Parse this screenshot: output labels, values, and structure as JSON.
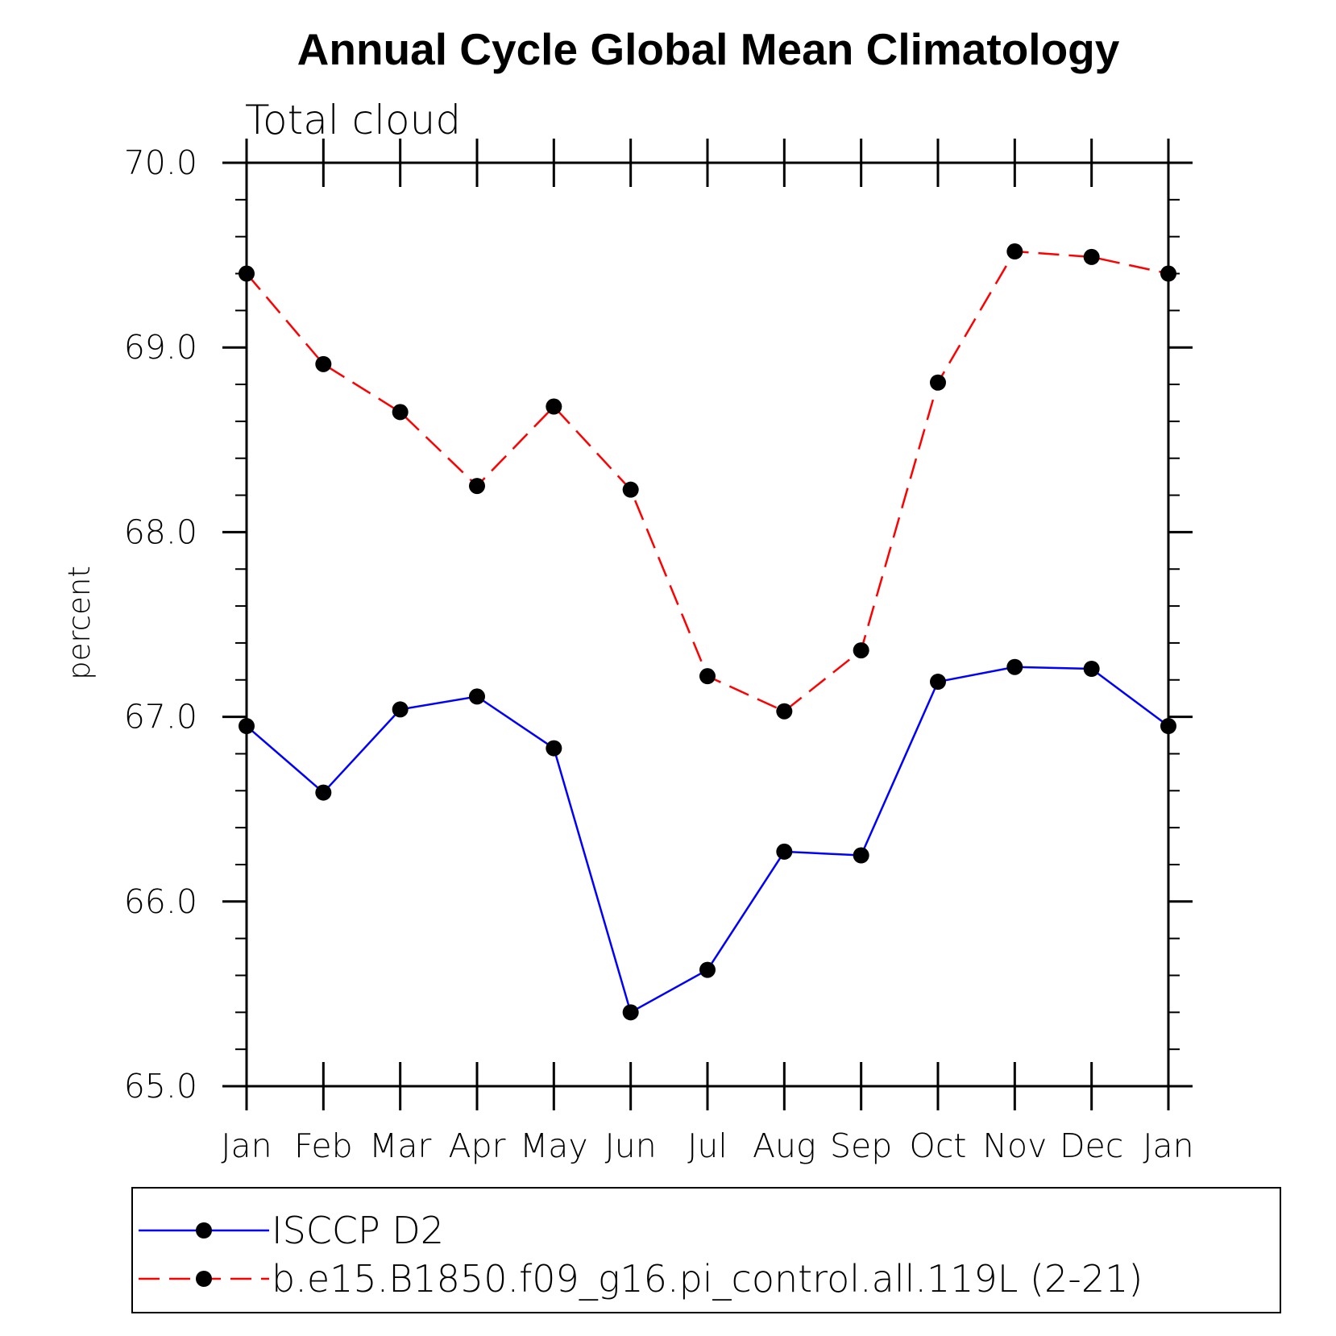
{
  "chart_data": {
    "type": "line",
    "title": "Annual Cycle Global Mean Climatology",
    "subtitle": "Total cloud",
    "xlabel": "",
    "ylabel": "percent",
    "ylim": [
      65.0,
      70.0
    ],
    "yticks": [
      "65.0",
      "66.0",
      "67.0",
      "68.0",
      "69.0",
      "70.0"
    ],
    "categories": [
      "Jan",
      "Feb",
      "Mar",
      "Apr",
      "May",
      "Jun",
      "Jul",
      "Aug",
      "Sep",
      "Oct",
      "Nov",
      "Dec",
      "Jan"
    ],
    "grid": false,
    "legend": "bottom",
    "series": [
      {
        "name": "ISCCP D2",
        "color": "#0000ff",
        "line_style": "solid",
        "marker": "filled-circle",
        "values": [
          66.95,
          66.59,
          67.04,
          67.11,
          66.83,
          65.4,
          65.63,
          66.27,
          66.25,
          67.19,
          67.27,
          67.26,
          66.95
        ]
      },
      {
        "name": "b.e15.B1850.f09_g16.pi_control.all.119L (2-21)",
        "color": "#ff0000",
        "line_style": "dashed",
        "marker": "filled-circle",
        "values": [
          69.4,
          68.91,
          68.65,
          68.25,
          68.68,
          68.23,
          67.22,
          67.03,
          67.36,
          68.81,
          69.52,
          69.49,
          69.4
        ]
      }
    ]
  }
}
